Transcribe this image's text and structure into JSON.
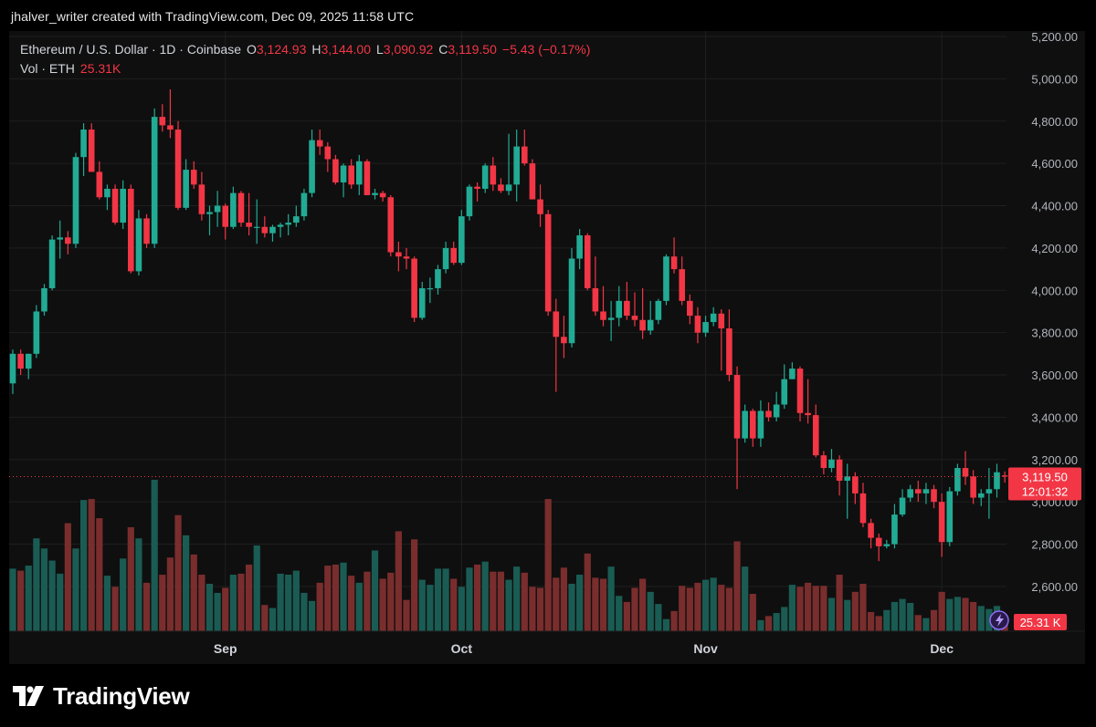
{
  "header": {
    "attribution": "jhalver_writer created with TradingView.com, Dec 09, 2025 11:58 UTC"
  },
  "legend": {
    "symbol": "Ethereum / U.S. Dollar · 1D · Coinbase",
    "open_label": "O",
    "open": "3,124.93",
    "high_label": "H",
    "high": "3,144.00",
    "low_label": "L",
    "low": "3,090.92",
    "close_label": "C",
    "close": "3,119.50",
    "change": "−5.43 (−0.17%)",
    "volume_label": "Vol · ETH",
    "volume": "25.31K"
  },
  "price_badge": {
    "price": "3,119.50",
    "countdown": "12:01:32"
  },
  "volume_badge": {
    "value": "25.31 K"
  },
  "brand": {
    "name": "TradingView"
  },
  "colors": {
    "up": "#22ab94",
    "down": "#f23645",
    "vol_up": "#1a5c53",
    "vol_down": "#7a2d2d",
    "grid": "#1f1f1f",
    "axis_text": "#b2b5be"
  },
  "chart_data": {
    "type": "candlestick",
    "y_ticks": [
      2600,
      2800,
      3000,
      3200,
      3400,
      3600,
      3800,
      4000,
      4200,
      4400,
      4600,
      4800,
      5000,
      5200
    ],
    "y_tick_labels": [
      "2,600.00",
      "2,800.00",
      "3,000.00",
      "3,200.00",
      "3,400.00",
      "3,600.00",
      "3,800.00",
      "4,000.00",
      "4,200.00",
      "4,400.00",
      "4,600.00",
      "4,800.00",
      "5,000.00",
      "5,200.00"
    ],
    "x_labels": [
      {
        "label": "Sep",
        "index": 27
      },
      {
        "label": "Oct",
        "index": 57
      },
      {
        "label": "Nov",
        "index": 88
      },
      {
        "label": "Dec",
        "index": 118
      }
    ],
    "last_price": 3119.5,
    "candles": [
      {
        "o": 3560,
        "h": 3720,
        "l": 3510,
        "c": 3700,
        "v": 62
      },
      {
        "o": 3700,
        "h": 3720,
        "l": 3600,
        "c": 3630,
        "v": 60
      },
      {
        "o": 3630,
        "h": 3700,
        "l": 3580,
        "c": 3700,
        "v": 65
      },
      {
        "o": 3700,
        "h": 3930,
        "l": 3680,
        "c": 3900,
        "v": 92
      },
      {
        "o": 3900,
        "h": 4030,
        "l": 3880,
        "c": 4010,
        "v": 82
      },
      {
        "o": 4010,
        "h": 4260,
        "l": 4000,
        "c": 4240,
        "v": 70
      },
      {
        "o": 4240,
        "h": 4330,
        "l": 4150,
        "c": 4250,
        "v": 57
      },
      {
        "o": 4250,
        "h": 4280,
        "l": 4170,
        "c": 4220,
        "v": 107
      },
      {
        "o": 4220,
        "h": 4650,
        "l": 4200,
        "c": 4630,
        "v": 82
      },
      {
        "o": 4630,
        "h": 4790,
        "l": 4540,
        "c": 4760,
        "v": 130
      },
      {
        "o": 4760,
        "h": 4790,
        "l": 4560,
        "c": 4560,
        "v": 131
      },
      {
        "o": 4560,
        "h": 4610,
        "l": 4430,
        "c": 4440,
        "v": 112
      },
      {
        "o": 4440,
        "h": 4500,
        "l": 4380,
        "c": 4480,
        "v": 55
      },
      {
        "o": 4480,
        "h": 4500,
        "l": 4310,
        "c": 4320,
        "v": 44
      },
      {
        "o": 4320,
        "h": 4520,
        "l": 4290,
        "c": 4480,
        "v": 72
      },
      {
        "o": 4480,
        "h": 4500,
        "l": 4080,
        "c": 4090,
        "v": 103
      },
      {
        "o": 4090,
        "h": 4380,
        "l": 4070,
        "c": 4340,
        "v": 92
      },
      {
        "o": 4340,
        "h": 4360,
        "l": 4200,
        "c": 4220,
        "v": 48
      },
      {
        "o": 4220,
        "h": 4860,
        "l": 4200,
        "c": 4820,
        "v": 150
      },
      {
        "o": 4820,
        "h": 4880,
        "l": 4750,
        "c": 4780,
        "v": 56
      },
      {
        "o": 4780,
        "h": 4950,
        "l": 4720,
        "c": 4760,
        "v": 73
      },
      {
        "o": 4760,
        "h": 4800,
        "l": 4380,
        "c": 4390,
        "v": 115
      },
      {
        "o": 4390,
        "h": 4620,
        "l": 4380,
        "c": 4570,
        "v": 95
      },
      {
        "o": 4570,
        "h": 4610,
        "l": 4480,
        "c": 4500,
        "v": 76
      },
      {
        "o": 4500,
        "h": 4560,
        "l": 4330,
        "c": 4360,
        "v": 56
      },
      {
        "o": 4360,
        "h": 4400,
        "l": 4260,
        "c": 4370,
        "v": 47
      },
      {
        "o": 4370,
        "h": 4470,
        "l": 4300,
        "c": 4400,
        "v": 38
      },
      {
        "o": 4400,
        "h": 4410,
        "l": 4240,
        "c": 4300,
        "v": 43
      },
      {
        "o": 4300,
        "h": 4490,
        "l": 4290,
        "c": 4460,
        "v": 56
      },
      {
        "o": 4460,
        "h": 4470,
        "l": 4300,
        "c": 4320,
        "v": 57
      },
      {
        "o": 4320,
        "h": 4460,
        "l": 4260,
        "c": 4300,
        "v": 66
      },
      {
        "o": 4300,
        "h": 4430,
        "l": 4220,
        "c": 4300,
        "v": 85
      },
      {
        "o": 4300,
        "h": 4350,
        "l": 4250,
        "c": 4270,
        "v": 26
      },
      {
        "o": 4270,
        "h": 4310,
        "l": 4230,
        "c": 4300,
        "v": 23
      },
      {
        "o": 4300,
        "h": 4320,
        "l": 4250,
        "c": 4310,
        "v": 57
      },
      {
        "o": 4310,
        "h": 4360,
        "l": 4260,
        "c": 4320,
        "v": 56
      },
      {
        "o": 4320,
        "h": 4400,
        "l": 4300,
        "c": 4350,
        "v": 60
      },
      {
        "o": 4350,
        "h": 4480,
        "l": 4330,
        "c": 4460,
        "v": 38
      },
      {
        "o": 4460,
        "h": 4760,
        "l": 4440,
        "c": 4710,
        "v": 30
      },
      {
        "o": 4710,
        "h": 4760,
        "l": 4640,
        "c": 4680,
        "v": 48
      },
      {
        "o": 4680,
        "h": 4700,
        "l": 4560,
        "c": 4620,
        "v": 65
      },
      {
        "o": 4620,
        "h": 4640,
        "l": 4500,
        "c": 4510,
        "v": 66
      },
      {
        "o": 4510,
        "h": 4600,
        "l": 4440,
        "c": 4590,
        "v": 68
      },
      {
        "o": 4590,
        "h": 4620,
        "l": 4480,
        "c": 4500,
        "v": 55
      },
      {
        "o": 4500,
        "h": 4640,
        "l": 4450,
        "c": 4610,
        "v": 48
      },
      {
        "o": 4610,
        "h": 4620,
        "l": 4450,
        "c": 4450,
        "v": 59
      },
      {
        "o": 4450,
        "h": 4480,
        "l": 4430,
        "c": 4460,
        "v": 80
      },
      {
        "o": 4460,
        "h": 4470,
        "l": 4420,
        "c": 4440,
        "v": 52
      },
      {
        "o": 4440,
        "h": 4450,
        "l": 4160,
        "c": 4180,
        "v": 58
      },
      {
        "o": 4180,
        "h": 4230,
        "l": 4090,
        "c": 4160,
        "v": 99
      },
      {
        "o": 4160,
        "h": 4200,
        "l": 4100,
        "c": 4150,
        "v": 31
      },
      {
        "o": 4150,
        "h": 4160,
        "l": 3850,
        "c": 3870,
        "v": 91
      },
      {
        "o": 3870,
        "h": 4040,
        "l": 3860,
        "c": 4010,
        "v": 51
      },
      {
        "o": 4010,
        "h": 4060,
        "l": 3940,
        "c": 4010,
        "v": 46
      },
      {
        "o": 4010,
        "h": 4120,
        "l": 3980,
        "c": 4100,
        "v": 62
      },
      {
        "o": 4100,
        "h": 4230,
        "l": 4080,
        "c": 4200,
        "v": 62
      },
      {
        "o": 4200,
        "h": 4230,
        "l": 4120,
        "c": 4130,
        "v": 52
      },
      {
        "o": 4130,
        "h": 4380,
        "l": 4120,
        "c": 4350,
        "v": 44
      },
      {
        "o": 4350,
        "h": 4500,
        "l": 4330,
        "c": 4490,
        "v": 63
      },
      {
        "o": 4490,
        "h": 4510,
        "l": 4420,
        "c": 4480,
        "v": 66
      },
      {
        "o": 4480,
        "h": 4600,
        "l": 4460,
        "c": 4590,
        "v": 69
      },
      {
        "o": 4590,
        "h": 4630,
        "l": 4470,
        "c": 4500,
        "v": 59
      },
      {
        "o": 4500,
        "h": 4530,
        "l": 4460,
        "c": 4470,
        "v": 59
      },
      {
        "o": 4470,
        "h": 4740,
        "l": 4450,
        "c": 4500,
        "v": 51
      },
      {
        "o": 4500,
        "h": 4760,
        "l": 4420,
        "c": 4680,
        "v": 64
      },
      {
        "o": 4680,
        "h": 4760,
        "l": 4590,
        "c": 4600,
        "v": 58
      },
      {
        "o": 4600,
        "h": 4620,
        "l": 4430,
        "c": 4430,
        "v": 44
      },
      {
        "o": 4430,
        "h": 4500,
        "l": 4300,
        "c": 4360,
        "v": 43
      },
      {
        "o": 4360,
        "h": 4380,
        "l": 3880,
        "c": 3900,
        "v": 131
      },
      {
        "o": 3900,
        "h": 3960,
        "l": 3520,
        "c": 3780,
        "v": 53
      },
      {
        "o": 3780,
        "h": 3880,
        "l": 3680,
        "c": 3750,
        "v": 63
      },
      {
        "o": 3750,
        "h": 4200,
        "l": 3730,
        "c": 4150,
        "v": 47
      },
      {
        "o": 4150,
        "h": 4290,
        "l": 4100,
        "c": 4260,
        "v": 56
      },
      {
        "o": 4260,
        "h": 4270,
        "l": 4000,
        "c": 4010,
        "v": 77
      },
      {
        "o": 4010,
        "h": 4160,
        "l": 3880,
        "c": 3900,
        "v": 53
      },
      {
        "o": 3900,
        "h": 4020,
        "l": 3830,
        "c": 3860,
        "v": 52
      },
      {
        "o": 3860,
        "h": 3950,
        "l": 3760,
        "c": 3870,
        "v": 64
      },
      {
        "o": 3870,
        "h": 4020,
        "l": 3830,
        "c": 3950,
        "v": 35
      },
      {
        "o": 3950,
        "h": 4040,
        "l": 3860,
        "c": 3880,
        "v": 29
      },
      {
        "o": 3880,
        "h": 3990,
        "l": 3830,
        "c": 3860,
        "v": 43
      },
      {
        "o": 3860,
        "h": 4010,
        "l": 3770,
        "c": 3810,
        "v": 52
      },
      {
        "o": 3810,
        "h": 3950,
        "l": 3790,
        "c": 3860,
        "v": 39
      },
      {
        "o": 3860,
        "h": 3960,
        "l": 3840,
        "c": 3950,
        "v": 27
      },
      {
        "o": 3950,
        "h": 4170,
        "l": 3930,
        "c": 4160,
        "v": 12
      },
      {
        "o": 4160,
        "h": 4250,
        "l": 4080,
        "c": 4100,
        "v": 20
      },
      {
        "o": 4100,
        "h": 4160,
        "l": 3930,
        "c": 3950,
        "v": 45
      },
      {
        "o": 3950,
        "h": 3980,
        "l": 3840,
        "c": 3880,
        "v": 43
      },
      {
        "o": 3880,
        "h": 3920,
        "l": 3750,
        "c": 3800,
        "v": 48
      },
      {
        "o": 3800,
        "h": 3880,
        "l": 3780,
        "c": 3850,
        "v": 51
      },
      {
        "o": 3850,
        "h": 3920,
        "l": 3830,
        "c": 3890,
        "v": 53
      },
      {
        "o": 3890,
        "h": 3910,
        "l": 3620,
        "c": 3820,
        "v": 46
      },
      {
        "o": 3820,
        "h": 3910,
        "l": 3570,
        "c": 3600,
        "v": 43
      },
      {
        "o": 3600,
        "h": 3640,
        "l": 3060,
        "c": 3300,
        "v": 89
      },
      {
        "o": 3300,
        "h": 3460,
        "l": 3280,
        "c": 3430,
        "v": 64
      },
      {
        "o": 3430,
        "h": 3440,
        "l": 3260,
        "c": 3300,
        "v": 37
      },
      {
        "o": 3300,
        "h": 3480,
        "l": 3260,
        "c": 3430,
        "v": 11
      },
      {
        "o": 3430,
        "h": 3470,
        "l": 3380,
        "c": 3400,
        "v": 15
      },
      {
        "o": 3400,
        "h": 3520,
        "l": 3380,
        "c": 3460,
        "v": 18
      },
      {
        "o": 3460,
        "h": 3650,
        "l": 3440,
        "c": 3580,
        "v": 24
      },
      {
        "o": 3580,
        "h": 3660,
        "l": 3580,
        "c": 3630,
        "v": 46
      },
      {
        "o": 3630,
        "h": 3640,
        "l": 3380,
        "c": 3420,
        "v": 44
      },
      {
        "o": 3420,
        "h": 3580,
        "l": 3370,
        "c": 3410,
        "v": 48
      },
      {
        "o": 3410,
        "h": 3460,
        "l": 3210,
        "c": 3220,
        "v": 45
      },
      {
        "o": 3220,
        "h": 3240,
        "l": 3130,
        "c": 3160,
        "v": 45
      },
      {
        "o": 3160,
        "h": 3250,
        "l": 3140,
        "c": 3200,
        "v": 33
      },
      {
        "o": 3200,
        "h": 3220,
        "l": 3030,
        "c": 3100,
        "v": 56
      },
      {
        "o": 3100,
        "h": 3180,
        "l": 2920,
        "c": 3120,
        "v": 31
      },
      {
        "o": 3120,
        "h": 3140,
        "l": 2990,
        "c": 3040,
        "v": 39
      },
      {
        "o": 3040,
        "h": 3090,
        "l": 2880,
        "c": 2900,
        "v": 47
      },
      {
        "o": 2900,
        "h": 2920,
        "l": 2780,
        "c": 2830,
        "v": 19
      },
      {
        "o": 2830,
        "h": 2850,
        "l": 2720,
        "c": 2790,
        "v": 15
      },
      {
        "o": 2790,
        "h": 2820,
        "l": 2780,
        "c": 2800,
        "v": 21
      },
      {
        "o": 2800,
        "h": 2990,
        "l": 2780,
        "c": 2940,
        "v": 29
      },
      {
        "o": 2940,
        "h": 3060,
        "l": 2930,
        "c": 3020,
        "v": 32
      },
      {
        "o": 3020,
        "h": 3080,
        "l": 3000,
        "c": 3060,
        "v": 28
      },
      {
        "o": 3060,
        "h": 3100,
        "l": 3000,
        "c": 3040,
        "v": 16
      },
      {
        "o": 3040,
        "h": 3090,
        "l": 2990,
        "c": 3060,
        "v": 13
      },
      {
        "o": 3060,
        "h": 3080,
        "l": 2970,
        "c": 3000,
        "v": 21
      },
      {
        "o": 3000,
        "h": 3040,
        "l": 2740,
        "c": 2810,
        "v": 39
      },
      {
        "o": 2810,
        "h": 3070,
        "l": 2790,
        "c": 3050,
        "v": 32
      },
      {
        "o": 3050,
        "h": 3180,
        "l": 3030,
        "c": 3160,
        "v": 34
      },
      {
        "o": 3160,
        "h": 3240,
        "l": 3080,
        "c": 3120,
        "v": 33
      },
      {
        "o": 3120,
        "h": 3150,
        "l": 2990,
        "c": 3020,
        "v": 29
      },
      {
        "o": 3020,
        "h": 3060,
        "l": 2980,
        "c": 3040,
        "v": 25
      },
      {
        "o": 3040,
        "h": 3160,
        "l": 2920,
        "c": 3060,
        "v": 22
      },
      {
        "o": 3060,
        "h": 3180,
        "l": 3020,
        "c": 3140,
        "v": 25
      },
      {
        "o": 3124.93,
        "h": 3144,
        "l": 3090.92,
        "c": 3119.5,
        "v": 6
      }
    ]
  }
}
